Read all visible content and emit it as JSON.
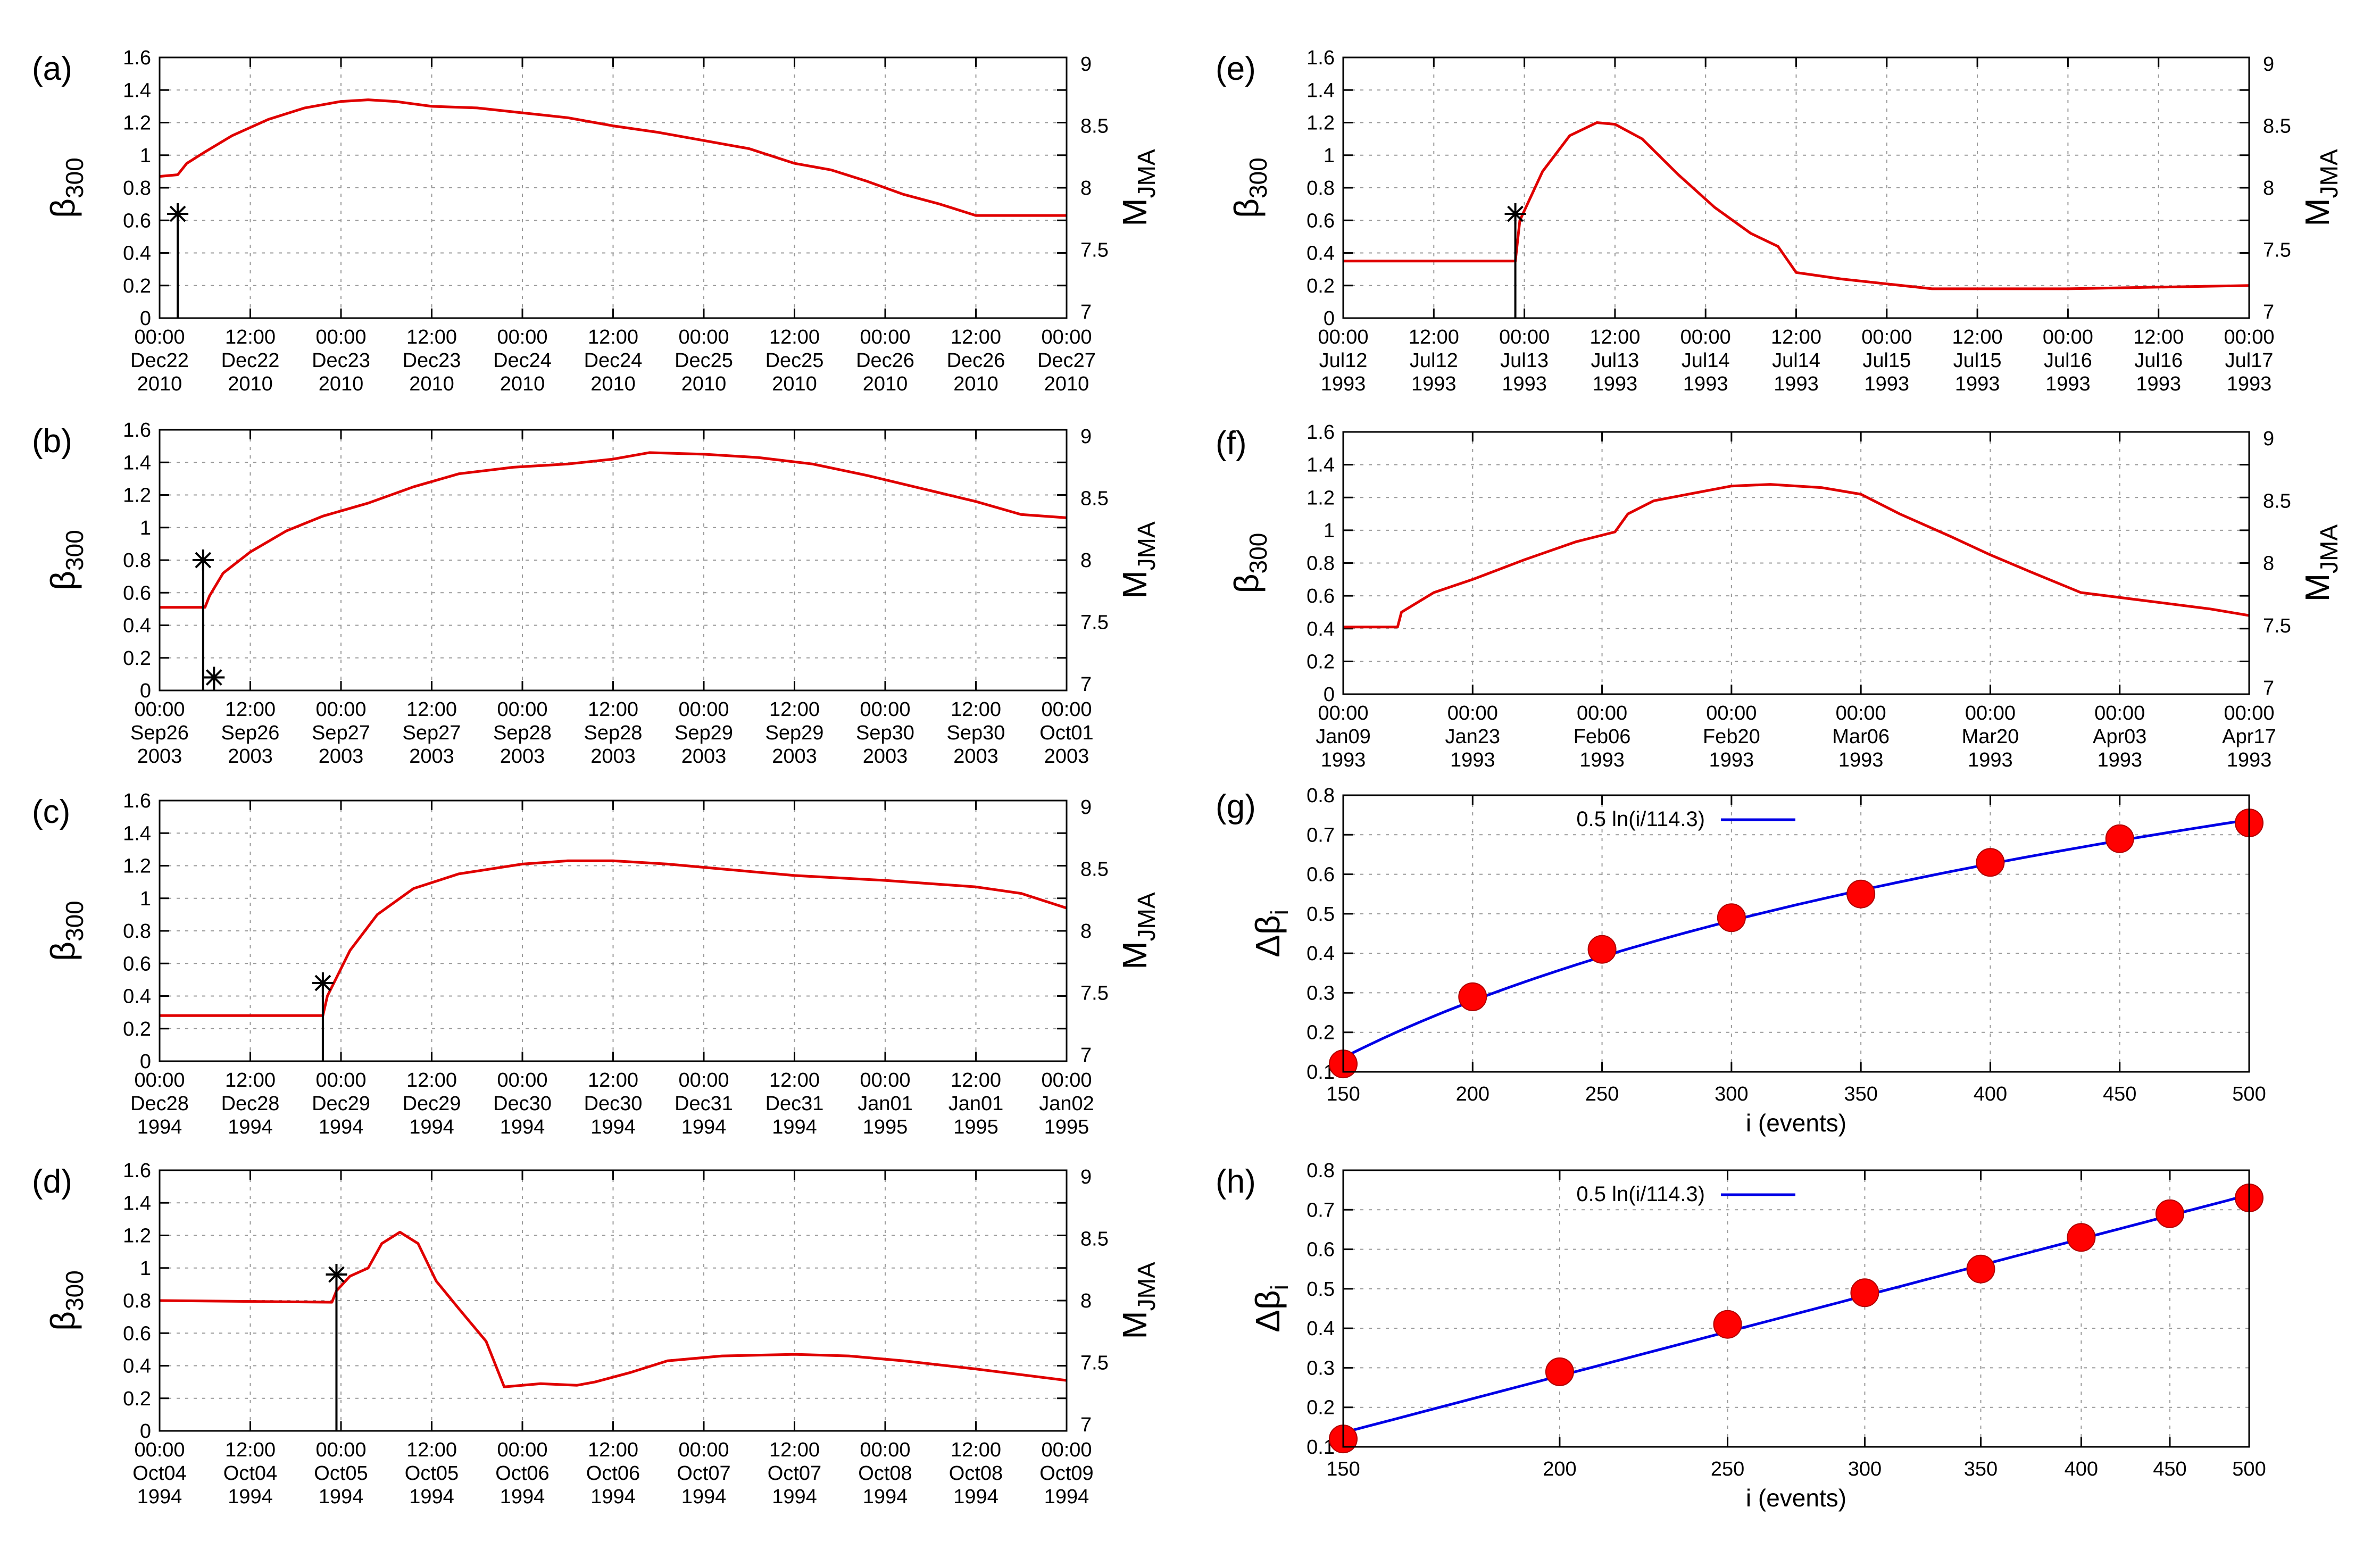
{
  "chart_data": [
    {
      "id": "a",
      "type": "line",
      "label": "(a)",
      "ylabel": "β300",
      "y2label": "MJMA",
      "ylim": [
        0,
        1.6
      ],
      "yticks": [
        "0",
        "0.2",
        "0.4",
        "0.6",
        "0.8",
        "1",
        "1.2",
        "1.4",
        "1.6"
      ],
      "y2lim": [
        7,
        9
      ],
      "y2ticks": [
        "7",
        "7.5",
        "8",
        "8.5",
        "9"
      ],
      "xlim": [
        0,
        10
      ],
      "xticks": [
        {
          "t": "00:00",
          "d": "Dec22",
          "y": "2010"
        },
        {
          "t": "12:00",
          "d": "Dec22",
          "y": "2010"
        },
        {
          "t": "00:00",
          "d": "Dec23",
          "y": "2010"
        },
        {
          "t": "12:00",
          "d": "Dec23",
          "y": "2010"
        },
        {
          "t": "00:00",
          "d": "Dec24",
          "y": "2010"
        },
        {
          "t": "12:00",
          "d": "Dec24",
          "y": "2010"
        },
        {
          "t": "00:00",
          "d": "Dec25",
          "y": "2010"
        },
        {
          "t": "12:00",
          "d": "Dec25",
          "y": "2010"
        },
        {
          "t": "00:00",
          "d": "Dec26",
          "y": "2010"
        },
        {
          "t": "12:00",
          "d": "Dec26",
          "y": "2010"
        },
        {
          "t": "00:00",
          "d": "Dec27",
          "y": "2010"
        }
      ],
      "series": {
        "x": [
          0,
          0.2,
          0.3,
          0.5,
          0.8,
          1.2,
          1.6,
          2.0,
          2.3,
          2.6,
          3.0,
          3.5,
          4.0,
          4.5,
          5.0,
          5.5,
          6.0,
          6.5,
          7.0,
          7.4,
          7.8,
          8.2,
          8.6,
          9.0,
          10.0
        ],
        "y": [
          0.87,
          0.88,
          0.95,
          1.02,
          1.12,
          1.22,
          1.29,
          1.33,
          1.34,
          1.33,
          1.3,
          1.29,
          1.26,
          1.23,
          1.18,
          1.14,
          1.09,
          1.04,
          0.95,
          0.91,
          0.84,
          0.76,
          0.7,
          0.63,
          0.63
        ]
      },
      "events": [
        {
          "x": 0.2,
          "m": 7.8
        }
      ]
    },
    {
      "id": "b",
      "type": "line",
      "label": "(b)",
      "ylabel": "β300",
      "y2label": "MJMA",
      "ylim": [
        0,
        1.6
      ],
      "yticks": [
        "0",
        "0.2",
        "0.4",
        "0.6",
        "0.8",
        "1",
        "1.2",
        "1.4",
        "1.6"
      ],
      "y2lim": [
        7,
        9
      ],
      "y2ticks": [
        "7",
        "7.5",
        "8",
        "8.5",
        "9"
      ],
      "xlim": [
        0,
        10
      ],
      "xticks": [
        {
          "t": "00:00",
          "d": "Sep26",
          "y": "2003"
        },
        {
          "t": "12:00",
          "d": "Sep26",
          "y": "2003"
        },
        {
          "t": "00:00",
          "d": "Sep27",
          "y": "2003"
        },
        {
          "t": "12:00",
          "d": "Sep27",
          "y": "2003"
        },
        {
          "t": "00:00",
          "d": "Sep28",
          "y": "2003"
        },
        {
          "t": "12:00",
          "d": "Sep28",
          "y": "2003"
        },
        {
          "t": "00:00",
          "d": "Sep29",
          "y": "2003"
        },
        {
          "t": "12:00",
          "d": "Sep29",
          "y": "2003"
        },
        {
          "t": "00:00",
          "d": "Sep30",
          "y": "2003"
        },
        {
          "t": "12:00",
          "d": "Sep30",
          "y": "2003"
        },
        {
          "t": "00:00",
          "d": "Oct01",
          "y": "2003"
        }
      ],
      "series": {
        "x": [
          0,
          0.5,
          0.55,
          0.7,
          1.0,
          1.4,
          1.8,
          2.3,
          2.8,
          3.3,
          3.9,
          4.5,
          5.0,
          5.4,
          6.0,
          6.6,
          7.2,
          7.8,
          8.4,
          9.0,
          9.5,
          10.0
        ],
        "y": [
          0.51,
          0.51,
          0.58,
          0.72,
          0.85,
          0.98,
          1.07,
          1.15,
          1.25,
          1.33,
          1.37,
          1.39,
          1.42,
          1.46,
          1.45,
          1.43,
          1.39,
          1.32,
          1.24,
          1.16,
          1.08,
          1.06
        ]
      },
      "events": [
        {
          "x": 0.48,
          "m": 8.0
        },
        {
          "x": 0.6,
          "m": 7.1
        }
      ]
    },
    {
      "id": "c",
      "type": "line",
      "label": "(c)",
      "ylabel": "β300",
      "y2label": "MJMA",
      "ylim": [
        0,
        1.6
      ],
      "yticks": [
        "0",
        "0.2",
        "0.4",
        "0.6",
        "0.8",
        "1",
        "1.2",
        "1.4",
        "1.6"
      ],
      "y2lim": [
        7,
        9
      ],
      "y2ticks": [
        "7",
        "7.5",
        "8",
        "8.5",
        "9"
      ],
      "xlim": [
        0,
        10
      ],
      "xticks": [
        {
          "t": "00:00",
          "d": "Dec28",
          "y": "1994"
        },
        {
          "t": "12:00",
          "d": "Dec28",
          "y": "1994"
        },
        {
          "t": "00:00",
          "d": "Dec29",
          "y": "1994"
        },
        {
          "t": "12:00",
          "d": "Dec29",
          "y": "1994"
        },
        {
          "t": "00:00",
          "d": "Dec30",
          "y": "1994"
        },
        {
          "t": "12:00",
          "d": "Dec30",
          "y": "1994"
        },
        {
          "t": "00:00",
          "d": "Dec31",
          "y": "1994"
        },
        {
          "t": "12:00",
          "d": "Dec31",
          "y": "1994"
        },
        {
          "t": "00:00",
          "d": "Jan01",
          "y": "1995"
        },
        {
          "t": "12:00",
          "d": "Jan01",
          "y": "1995"
        },
        {
          "t": "00:00",
          "d": "Jan02",
          "y": "1995"
        }
      ],
      "series": {
        "x": [
          0,
          1.8,
          1.85,
          2.1,
          2.4,
          2.8,
          3.3,
          4.0,
          4.5,
          5.0,
          5.6,
          6.2,
          7.0,
          8.0,
          9.0,
          9.5,
          10.0
        ],
        "y": [
          0.28,
          0.28,
          0.4,
          0.68,
          0.9,
          1.06,
          1.15,
          1.21,
          1.23,
          1.23,
          1.21,
          1.18,
          1.14,
          1.11,
          1.07,
          1.03,
          0.94
        ]
      },
      "events": [
        {
          "x": 1.8,
          "m": 7.6
        }
      ]
    },
    {
      "id": "d",
      "type": "line",
      "label": "(d)",
      "ylabel": "β300",
      "y2label": "MJMA",
      "ylim": [
        0,
        1.6
      ],
      "yticks": [
        "0",
        "0.2",
        "0.4",
        "0.6",
        "0.8",
        "1",
        "1.2",
        "1.4",
        "1.6"
      ],
      "y2lim": [
        7,
        9
      ],
      "y2ticks": [
        "7",
        "7.5",
        "8",
        "8.5",
        "9"
      ],
      "xlim": [
        0,
        10
      ],
      "xticks": [
        {
          "t": "00:00",
          "d": "Oct04",
          "y": "1994"
        },
        {
          "t": "12:00",
          "d": "Oct04",
          "y": "1994"
        },
        {
          "t": "00:00",
          "d": "Oct05",
          "y": "1994"
        },
        {
          "t": "12:00",
          "d": "Oct05",
          "y": "1994"
        },
        {
          "t": "00:00",
          "d": "Oct06",
          "y": "1994"
        },
        {
          "t": "12:00",
          "d": "Oct06",
          "y": "1994"
        },
        {
          "t": "00:00",
          "d": "Oct07",
          "y": "1994"
        },
        {
          "t": "12:00",
          "d": "Oct07",
          "y": "1994"
        },
        {
          "t": "00:00",
          "d": "Oct08",
          "y": "1994"
        },
        {
          "t": "12:00",
          "d": "Oct08",
          "y": "1994"
        },
        {
          "t": "00:00",
          "d": "Oct09",
          "y": "1994"
        }
      ],
      "series": {
        "x": [
          0,
          1.9,
          1.95,
          2.1,
          2.3,
          2.45,
          2.65,
          2.85,
          3.05,
          3.3,
          3.6,
          3.8,
          4.2,
          4.6,
          4.8,
          5.2,
          5.6,
          6.2,
          7.0,
          7.6,
          8.2,
          9.0,
          10.0
        ],
        "y": [
          0.8,
          0.79,
          0.86,
          0.95,
          1.0,
          1.15,
          1.22,
          1.15,
          0.92,
          0.75,
          0.55,
          0.27,
          0.29,
          0.28,
          0.3,
          0.36,
          0.43,
          0.46,
          0.47,
          0.46,
          0.43,
          0.38,
          0.31
        ]
      },
      "events": [
        {
          "x": 1.95,
          "m": 8.2
        }
      ]
    },
    {
      "id": "e",
      "type": "line",
      "label": "(e)",
      "ylabel": "β300",
      "y2label": "MJMA",
      "ylim": [
        0,
        1.6
      ],
      "yticks": [
        "0",
        "0.2",
        "0.4",
        "0.6",
        "0.8",
        "1",
        "1.2",
        "1.4",
        "1.6"
      ],
      "y2lim": [
        7,
        9
      ],
      "y2ticks": [
        "7",
        "7.5",
        "8",
        "8.5",
        "9"
      ],
      "xlim": [
        0,
        10
      ],
      "xticks": [
        {
          "t": "00:00",
          "d": "Jul12",
          "y": "1993"
        },
        {
          "t": "12:00",
          "d": "Jul12",
          "y": "1993"
        },
        {
          "t": "00:00",
          "d": "Jul13",
          "y": "1993"
        },
        {
          "t": "12:00",
          "d": "Jul13",
          "y": "1993"
        },
        {
          "t": "00:00",
          "d": "Jul14",
          "y": "1993"
        },
        {
          "t": "12:00",
          "d": "Jul14",
          "y": "1993"
        },
        {
          "t": "00:00",
          "d": "Jul15",
          "y": "1993"
        },
        {
          "t": "12:00",
          "d": "Jul15",
          "y": "1993"
        },
        {
          "t": "00:00",
          "d": "Jul16",
          "y": "1993"
        },
        {
          "t": "12:00",
          "d": "Jul16",
          "y": "1993"
        },
        {
          "t": "00:00",
          "d": "Jul17",
          "y": "1993"
        }
      ],
      "series": {
        "x": [
          0,
          1.9,
          1.95,
          2.2,
          2.5,
          2.8,
          3.0,
          3.3,
          3.7,
          4.1,
          4.5,
          4.8,
          5.0,
          5.5,
          6.0,
          6.5,
          7.0,
          8.0,
          9.0,
          10.0
        ],
        "y": [
          0.35,
          0.35,
          0.6,
          0.9,
          1.12,
          1.2,
          1.19,
          1.1,
          0.88,
          0.68,
          0.52,
          0.44,
          0.28,
          0.24,
          0.21,
          0.18,
          0.18,
          0.18,
          0.19,
          0.2
        ]
      },
      "events": [
        {
          "x": 1.9,
          "m": 7.8
        }
      ]
    },
    {
      "id": "f",
      "type": "line",
      "label": "(f)",
      "ylabel": "β300",
      "y2label": "MJMA",
      "ylim": [
        0,
        1.6
      ],
      "yticks": [
        "0",
        "0.2",
        "0.4",
        "0.6",
        "0.8",
        "1",
        "1.2",
        "1.4",
        "1.6"
      ],
      "y2lim": [
        7,
        9
      ],
      "y2ticks": [
        "7",
        "7.5",
        "8",
        "8.5",
        "9"
      ],
      "xlim": [
        0,
        7
      ],
      "xticks": [
        {
          "t": "00:00",
          "d": "Jan09",
          "y": "1993"
        },
        {
          "t": "00:00",
          "d": "Jan23",
          "y": "1993"
        },
        {
          "t": "00:00",
          "d": "Feb06",
          "y": "1993"
        },
        {
          "t": "00:00",
          "d": "Feb20",
          "y": "1993"
        },
        {
          "t": "00:00",
          "d": "Mar06",
          "y": "1993"
        },
        {
          "t": "00:00",
          "d": "Mar20",
          "y": "1993"
        },
        {
          "t": "00:00",
          "d": "Apr03",
          "y": "1993"
        },
        {
          "t": "00:00",
          "d": "Apr17",
          "y": "1993"
        }
      ],
      "series": {
        "x": [
          0,
          0.42,
          0.45,
          0.7,
          1.0,
          1.4,
          1.8,
          2.1,
          2.2,
          2.4,
          2.8,
          3.0,
          3.3,
          3.7,
          4.0,
          4.3,
          4.7,
          5.0,
          5.3,
          5.7,
          6.2,
          6.7,
          7.0
        ],
        "y": [
          0.41,
          0.41,
          0.5,
          0.62,
          0.7,
          0.82,
          0.93,
          0.99,
          1.1,
          1.18,
          1.24,
          1.27,
          1.28,
          1.26,
          1.22,
          1.1,
          0.96,
          0.85,
          0.75,
          0.62,
          0.57,
          0.52,
          0.48
        ]
      },
      "events": []
    },
    {
      "id": "g",
      "type": "scatter",
      "label": "(g)",
      "ylabel": "Δβi",
      "xlabel": "i (events)",
      "xlim": [
        150,
        500
      ],
      "xscale": "linear",
      "xticks": [
        "150",
        "200",
        "250",
        "300",
        "350",
        "400",
        "450",
        "500"
      ],
      "ylim": [
        0.1,
        0.8
      ],
      "yticks": [
        "0.1",
        "0.2",
        "0.3",
        "0.4",
        "0.5",
        "0.6",
        "0.7",
        "0.8"
      ],
      "points": {
        "x": [
          150,
          200,
          250,
          300,
          350,
          400,
          450,
          500
        ],
        "y": [
          0.12,
          0.29,
          0.41,
          0.49,
          0.55,
          0.63,
          0.69,
          0.73
        ]
      },
      "fit": {
        "label": "0.5 ln(i/114.3)",
        "a": 0.5,
        "b": 114.3
      }
    },
    {
      "id": "h",
      "type": "scatter",
      "label": "(h)",
      "ylabel": "Δβi",
      "xlabel": "i (events)",
      "xlim": [
        150,
        500
      ],
      "xscale": "log",
      "xticks": [
        "150",
        "200",
        "250",
        "300",
        "350",
        "400",
        "450",
        "500"
      ],
      "ylim": [
        0.1,
        0.8
      ],
      "yticks": [
        "0.1",
        "0.2",
        "0.3",
        "0.4",
        "0.5",
        "0.6",
        "0.7",
        "0.8"
      ],
      "points": {
        "x": [
          150,
          200,
          250,
          300,
          350,
          400,
          450,
          500
        ],
        "y": [
          0.12,
          0.29,
          0.41,
          0.49,
          0.55,
          0.63,
          0.69,
          0.73
        ]
      },
      "fit": {
        "label": "0.5 ln(i/114.3)",
        "a": 0.5,
        "b": 114.3
      }
    }
  ]
}
